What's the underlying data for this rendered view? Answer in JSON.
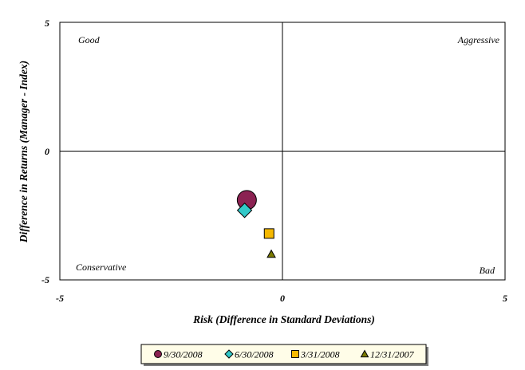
{
  "chart_data": {
    "type": "scatter",
    "xlabel": "Risk (Difference in Standard Deviations)",
    "ylabel": "Difference in Returns (Manager - Index)",
    "xlim": [
      -5,
      5
    ],
    "ylim": [
      -5,
      5
    ],
    "x_ticks": [
      "-5",
      "0",
      "5"
    ],
    "y_ticks": [
      "5",
      "0",
      "-5"
    ],
    "grid": false,
    "legend_position": "bottom",
    "quadrants": {
      "top_left": "Good",
      "top_right": "Aggressive",
      "bottom_left": "Conservative",
      "bottom_right": "Bad"
    },
    "series": [
      {
        "name": "9/30/2008",
        "marker": "circle",
        "color": "#8B2252",
        "x": [
          -0.8
        ],
        "y": [
          -1.9
        ]
      },
      {
        "name": "6/30/2008",
        "marker": "diamond",
        "color": "#33C9C9",
        "x": [
          -0.85
        ],
        "y": [
          -2.3
        ]
      },
      {
        "name": "3/31/2008",
        "marker": "square",
        "color": "#F5B800",
        "x": [
          -0.3
        ],
        "y": [
          -3.2
        ]
      },
      {
        "name": "12/31/2007",
        "marker": "triangle",
        "color": "#7A7A00",
        "x": [
          -0.25
        ],
        "y": [
          -4.0
        ]
      }
    ]
  }
}
